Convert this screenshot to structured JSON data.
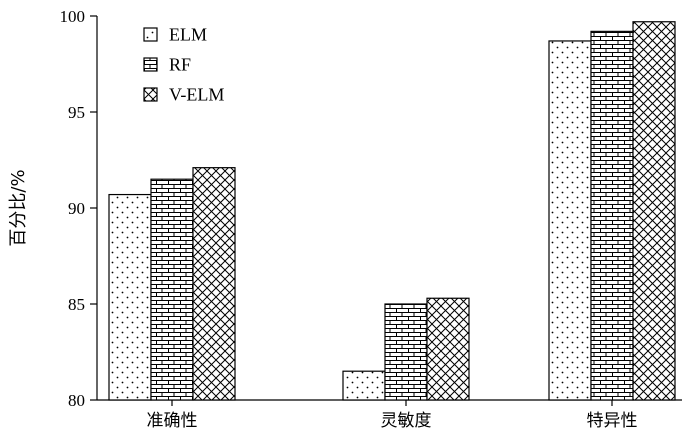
{
  "chart_data": {
    "type": "bar",
    "categories": [
      "准确性",
      "灵敏度",
      "特异性"
    ],
    "series": [
      {
        "name": "ELM",
        "values": [
          90.7,
          81.5,
          98.7
        ],
        "pattern": "dots"
      },
      {
        "name": "RF",
        "values": [
          91.5,
          85.0,
          99.2
        ],
        "pattern": "brick"
      },
      {
        "name": "V-ELM",
        "values": [
          92.1,
          85.3,
          99.7
        ],
        "pattern": "crosshatch"
      }
    ],
    "ylabel": "百分比/%",
    "xlabel": "",
    "ylim": [
      80,
      100
    ],
    "yticks": [
      80,
      85,
      90,
      95,
      100
    ],
    "legend_position": "top-left",
    "grid": false
  }
}
